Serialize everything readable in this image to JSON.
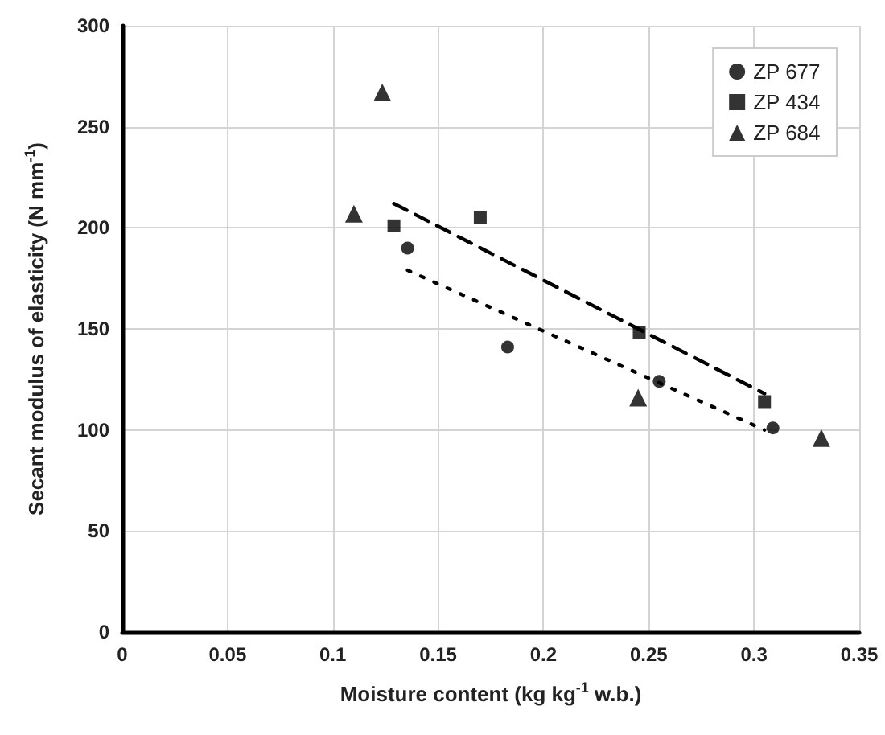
{
  "chart_data": {
    "type": "scatter",
    "xlabel": "Moisture content (kg kg$^{-1}$ w.b.)",
    "ylabel": "Secant modulus of elasticity (N mm$^{-1}$)",
    "xlim": [
      0,
      0.35
    ],
    "xticks": [
      0,
      0.05,
      0.1,
      0.15,
      0.2,
      0.25,
      0.3,
      0.35
    ],
    "ylim": [
      0,
      300
    ],
    "yticks": [
      0,
      50,
      100,
      150,
      200,
      250,
      300
    ],
    "grid": true,
    "legend": "top right",
    "series": [
      {
        "name": "ZP 677",
        "color": "#000000",
        "marker": "circle",
        "x": [
          0.1355,
          0.183,
          0.255,
          0.309
        ],
        "values": [
          190,
          141,
          124,
          101
        ]
      },
      {
        "name": "ZP 434",
        "color": "#000000",
        "marker": "square",
        "x": [
          0.129,
          0.17,
          0.2455,
          0.305
        ],
        "values": [
          201,
          205,
          148,
          114
        ]
      },
      {
        "name": "ZP 684",
        "color": "#000000",
        "marker": "triangle",
        "x": [
          0.1235,
          0.11,
          0.245,
          0.332
        ],
        "values": [
          267,
          207,
          116,
          96
        ]
      },
      {
        "type": "line",
        "color": "#000000",
        "marker": "none",
        "line_style": "dashed",
        "x": [
          0.129,
          0.305
        ],
        "values": [
          212,
          118
        ]
      },
      {
        "type": "line",
        "color": "#000000",
        "marker": "none",
        "line_style": "dotted",
        "x": [
          0.1355,
          0.305
        ],
        "values": [
          179,
          100
        ]
      }
    ]
  }
}
